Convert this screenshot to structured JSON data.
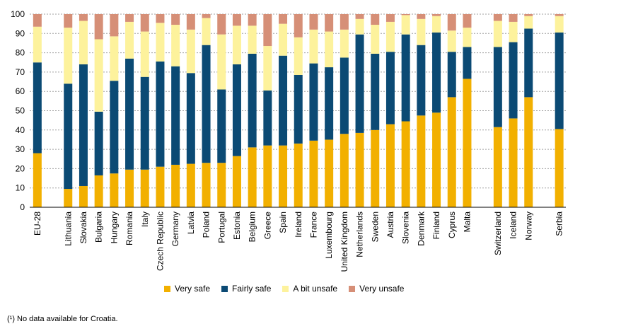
{
  "chart_data": {
    "type": "bar",
    "stacked": true,
    "ylim": [
      0,
      100
    ],
    "yticks": [
      0,
      10,
      20,
      30,
      40,
      50,
      60,
      70,
      80,
      90,
      100
    ],
    "grid": true,
    "legend_position": "bottom",
    "categories": [
      "EU-28",
      "Lithuania",
      "Slovakia",
      "Bulgaria",
      "Hungary",
      "Romania",
      "Italy",
      "Czech Republic",
      "Germany",
      "Latvia",
      "Poland",
      "Portugal",
      "Estonia",
      "Belgium",
      "Greece",
      "Spain",
      "Ireland",
      "France",
      "Luxembourg",
      "United Kingdom",
      "Netherlands",
      "Sweden",
      "Austria",
      "Slovenia",
      "Denmark",
      "Finland",
      "Cyprus",
      "Malta",
      "Switzerland",
      "Iceland",
      "Norway",
      "Serbia"
    ],
    "groups": [
      1,
      27,
      3,
      1
    ],
    "series": [
      {
        "name": "Very safe",
        "color": "#f2b000",
        "values": [
          28.0,
          9.5,
          11.0,
          16.5,
          17.5,
          19.5,
          19.5,
          21.0,
          22.0,
          22.5,
          23.0,
          23.0,
          26.5,
          31.0,
          32.0,
          32.0,
          33.0,
          34.5,
          35.0,
          38.0,
          38.5,
          40.0,
          43.0,
          44.5,
          47.5,
          49.0,
          57.0,
          66.5,
          41.5,
          46.0,
          57.0,
          40.5
        ]
      },
      {
        "name": "Fairly safe",
        "color": "#0b4a74",
        "values": [
          47.0,
          54.5,
          63.0,
          33.0,
          48.0,
          57.5,
          48.0,
          54.5,
          51.0,
          47.0,
          61.0,
          38.0,
          47.5,
          48.5,
          28.5,
          46.5,
          35.5,
          40.0,
          37.5,
          39.5,
          51.0,
          39.5,
          37.5,
          45.0,
          36.5,
          41.5,
          23.5,
          16.5,
          41.5,
          39.5,
          35.5,
          50.0
        ]
      },
      {
        "name": "A bit unsafe",
        "color": "#fdf29c",
        "values": [
          18.5,
          29.0,
          22.5,
          37.5,
          23.0,
          19.0,
          23.5,
          20.0,
          21.5,
          22.5,
          14.0,
          28.5,
          20.0,
          14.5,
          23.0,
          16.5,
          19.5,
          17.5,
          18.5,
          14.5,
          8.0,
          15.0,
          15.5,
          10.0,
          13.5,
          8.5,
          11.0,
          10.0,
          13.5,
          10.5,
          6.5,
          8.5
        ]
      },
      {
        "name": "Very unsafe",
        "color": "#d68f77",
        "values": [
          6.5,
          7.0,
          3.5,
          13.0,
          11.5,
          4.0,
          9.0,
          4.5,
          5.5,
          8.0,
          2.0,
          10.5,
          6.0,
          6.0,
          16.5,
          5.0,
          12.0,
          8.0,
          9.0,
          8.0,
          2.5,
          5.5,
          4.0,
          0.5,
          2.5,
          1.0,
          8.5,
          7.0,
          3.5,
          4.0,
          1.0,
          1.0
        ]
      }
    ]
  },
  "footnote": "(¹) No data available for Croatia."
}
